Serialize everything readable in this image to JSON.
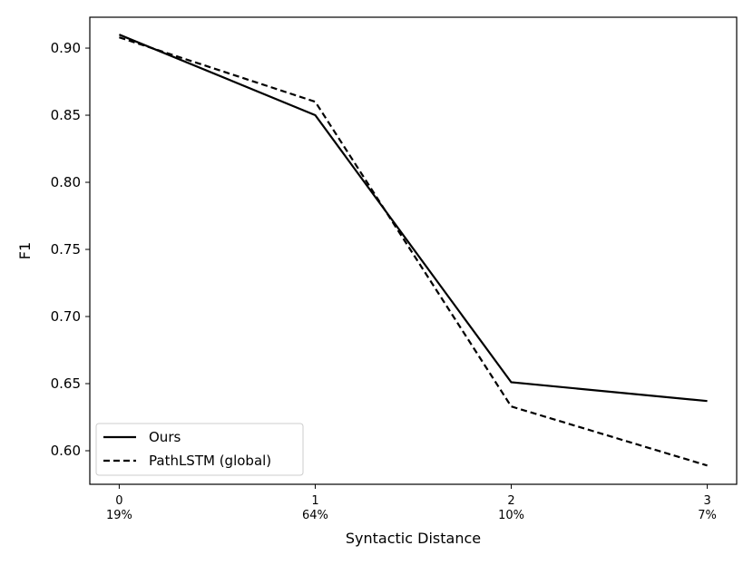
{
  "chart_data": {
    "type": "line",
    "title": "",
    "xlabel": "Syntactic Distance",
    "ylabel": "F1",
    "x": [
      0,
      1,
      2,
      3
    ],
    "x_tick_labels": [
      "0",
      "1",
      "2",
      "3"
    ],
    "x_tick_sublabels": [
      "19%",
      "64%",
      "10%",
      "7%"
    ],
    "y_ticks": [
      "0.60",
      "0.65",
      "0.70",
      "0.75",
      "0.80",
      "0.85",
      "0.90"
    ],
    "xlim": [
      -0.15,
      3.15
    ],
    "ylim": [
      0.575,
      0.923
    ],
    "grid": false,
    "legend_position": "lower-left",
    "series": [
      {
        "name": "Ours",
        "values": [
          0.91,
          0.85,
          0.651,
          0.637
        ],
        "style": "solid",
        "color": "#000000"
      },
      {
        "name": "PathLSTM (global)",
        "values": [
          0.908,
          0.86,
          0.633,
          0.589
        ],
        "style": "dashed",
        "color": "#000000"
      }
    ]
  }
}
